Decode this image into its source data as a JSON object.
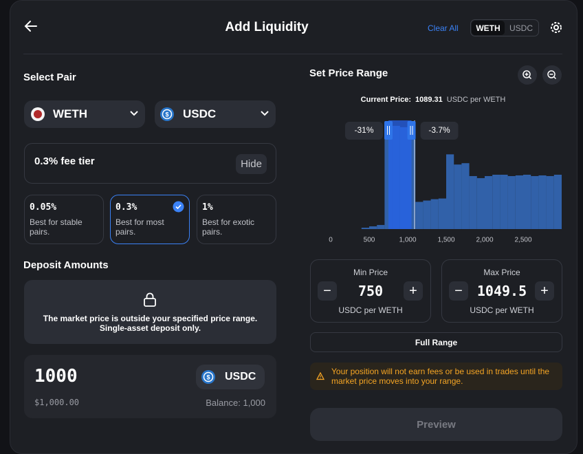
{
  "header": {
    "title": "Add Liquidity",
    "clear_all": "Clear All",
    "tokens": [
      "WETH",
      "USDC"
    ]
  },
  "pair": {
    "title": "Select Pair",
    "token_a": "WETH",
    "token_b": "USDC",
    "fee_tier": "0.3% fee tier",
    "hide": "Hide",
    "tiers": [
      {
        "fee": "0.05%",
        "description": "Best for stable pairs."
      },
      {
        "fee": "0.3%",
        "description": "Best for most pairs."
      },
      {
        "fee": "1%",
        "description": "Best for exotic pairs."
      }
    ]
  },
  "deposit": {
    "title": "Deposit Amounts",
    "notice": "The market price is outside your specified price range. Single-asset deposit only.",
    "amount": "1000",
    "token": "USDC",
    "usd": "$1,000.00",
    "balance": "Balance: 1,000"
  },
  "chart_data": {
    "type": "histogram",
    "title": "Set Price Range",
    "current_label": "Current Price:",
    "current_price": 1089.31,
    "unit": "USDC per WETH",
    "bins": [
      400,
      500,
      600,
      700,
      800,
      900,
      1000,
      1100,
      1200,
      1300,
      1400,
      1500,
      1600,
      1700,
      1800,
      1900,
      2000,
      2100,
      2200,
      2300,
      2400,
      2500,
      2600,
      2700,
      2800,
      2900,
      3000
    ],
    "values": [
      2,
      4,
      6,
      150,
      152,
      150,
      155,
      40,
      42,
      44,
      45,
      110,
      95,
      97,
      78,
      75,
      78,
      80,
      80,
      78,
      79,
      80,
      78,
      79,
      78,
      80
    ],
    "color": "#3161a9",
    "xlim": [
      0,
      3000
    ],
    "ylim": [
      0,
      160
    ],
    "xticks": [
      0,
      500,
      {
        "value": 1000,
        "label": "1,000"
      },
      {
        "value": 1500,
        "label": "1,500"
      },
      {
        "value": 2000,
        "label": "2,000"
      },
      {
        "value": 2500,
        "label": "2,500"
      }
    ],
    "range_min": 750,
    "range_max": 1049.5,
    "min_change": "-31%",
    "max_change": "-3.7%",
    "min_title": "Min Price",
    "max_title": "Max Price"
  },
  "actions": {
    "full_range": "Full Range",
    "warning": "Your position will not earn fees or be used in trades until the market price moves into your range.",
    "preview": "Preview"
  }
}
